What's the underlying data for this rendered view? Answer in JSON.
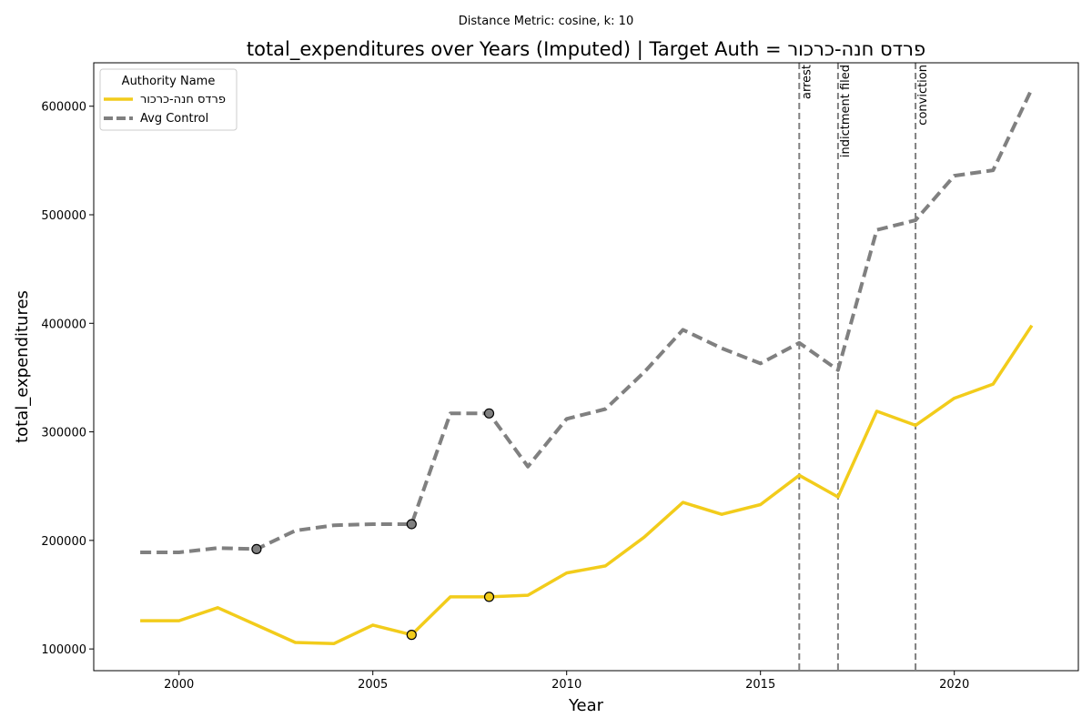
{
  "chart_data": {
    "type": "line",
    "suptitle": "Distance Metric: cosine, k: 10",
    "title": "total_expenditures over Years (Imputed) | Target Auth = פרדס חנה-כרכור",
    "xlabel": "Year",
    "ylabel": "total_expenditures",
    "xlim": [
      1997.8,
      2023.2
    ],
    "ylim": [
      80000,
      640000
    ],
    "xticks": [
      2000,
      2005,
      2010,
      2015,
      2020
    ],
    "yticks": [
      100000,
      200000,
      300000,
      400000,
      500000,
      600000
    ],
    "grid": false,
    "legend": {
      "title": "Authority Name",
      "placement": "top-left"
    },
    "x": [
      1999,
      2000,
      2001,
      2002,
      2003,
      2004,
      2005,
      2006,
      2007,
      2008,
      2009,
      2010,
      2011,
      2012,
      2013,
      2014,
      2015,
      2016,
      2017,
      2018,
      2019,
      2020,
      2021,
      2022
    ],
    "series": [
      {
        "name": "פרדס חנה-כרכור",
        "color": "#f2cc1b",
        "style": "solid",
        "values": [
          126000,
          126000,
          138000,
          122000,
          106000,
          105000,
          122000,
          113000,
          148000,
          148000,
          149500,
          170000,
          176500,
          203000,
          235000,
          224000,
          233000,
          260000,
          240000,
          319000,
          306000,
          331000,
          344000,
          398000
        ],
        "imputed_years": [
          2006,
          2008
        ]
      },
      {
        "name": "Avg Control",
        "color": "#808080",
        "style": "dashed",
        "values": [
          189000,
          189000,
          193000,
          192000,
          209000,
          214000,
          215000,
          215000,
          317000,
          317000,
          268000,
          312000,
          321000,
          355000,
          394000,
          377000,
          363000,
          382000,
          357000,
          486000,
          495000,
          536000,
          541000,
          616000
        ],
        "imputed_years": [
          2002,
          2006,
          2008
        ]
      }
    ],
    "events": [
      {
        "year": 2016,
        "label": "arrest"
      },
      {
        "year": 2017,
        "label": "indictment filed"
      },
      {
        "year": 2019,
        "label": "conviction"
      }
    ]
  }
}
